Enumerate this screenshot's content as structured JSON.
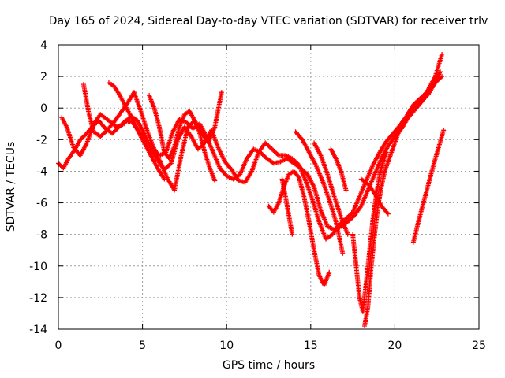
{
  "chart_data": {
    "type": "scatter",
    "title": "Day 165 of 2024, Sidereal Day-to-day VTEC variation (SDTVAR) for receiver trlv",
    "xlabel": "GPS time / hours",
    "ylabel": "SDTVAR / TECUs",
    "xlim": [
      0,
      25
    ],
    "ylim": [
      -14,
      4
    ],
    "xticks": [
      0,
      5,
      10,
      15,
      20,
      25
    ],
    "yticks": [
      -14,
      -12,
      -10,
      -8,
      -6,
      -4,
      -2,
      0,
      2,
      4
    ],
    "grid": true,
    "marker": "+",
    "color": "#ff0000",
    "series": [
      {
        "x": [
          0.0,
          0.3,
          0.6,
          1.0,
          1.3,
          1.6,
          2.0,
          2.4,
          2.8,
          3.2,
          3.6,
          4.0,
          4.4,
          4.8,
          5.2,
          5.6,
          6.0,
          6.4,
          6.8,
          7.2,
          7.6,
          8.0,
          8.4,
          8.8,
          9.2,
          9.6,
          10.0,
          10.4,
          10.8,
          11.2,
          11.6,
          12.0,
          12.4,
          12.8,
          13.2,
          13.6,
          14.0,
          14.4,
          14.8,
          15.2,
          15.6,
          16.0,
          16.4,
          16.8,
          17.2,
          17.6,
          18.0,
          18.4,
          18.8,
          19.2,
          19.6,
          20.0,
          20.4,
          20.8,
          21.2,
          21.6,
          22.0,
          22.4,
          22.8
        ],
        "y": [
          -3.5,
          -3.8,
          -3.2,
          -2.6,
          -2.0,
          -1.7,
          -1.2,
          -0.8,
          -1.3,
          -1.6,
          -1.2,
          -0.8,
          -0.9,
          -1.5,
          -2.0,
          -2.5,
          -3.0,
          -2.8,
          -1.5,
          -0.7,
          -0.9,
          -1.3,
          -1.0,
          -1.8,
          -2.8,
          -3.8,
          -4.3,
          -4.5,
          -4.2,
          -3.2,
          -2.6,
          -2.8,
          -3.2,
          -3.5,
          -3.4,
          -3.2,
          -3.5,
          -3.8,
          -4.2,
          -5.0,
          -6.5,
          -7.5,
          -7.7,
          -7.5,
          -7.2,
          -6.8,
          -6.2,
          -5.2,
          -4.2,
          -3.2,
          -2.4,
          -1.8,
          -1.3,
          -0.6,
          -0.1,
          0.4,
          0.9,
          1.6,
          2.0
        ]
      },
      {
        "x": [
          0.2,
          0.5,
          0.9,
          1.3,
          1.7,
          2.1,
          2.5,
          3.0,
          3.5,
          3.9,
          4.3,
          4.7,
          5.1,
          5.5,
          5.9,
          6.3,
          6.7,
          7.1,
          7.5,
          7.9,
          8.3,
          8.7,
          9.1,
          9.5,
          9.9,
          10.3,
          10.7,
          11.1,
          11.5,
          11.9,
          12.3,
          12.7,
          13.1,
          13.5,
          13.9,
          14.3,
          14.7,
          15.1,
          15.5,
          15.9,
          16.3,
          16.7,
          17.1,
          17.5,
          17.9,
          18.3,
          18.7,
          19.1,
          19.5,
          19.9,
          20.3,
          20.7,
          21.1,
          21.5,
          21.9,
          22.3,
          22.7
        ],
        "y": [
          -0.6,
          -1.2,
          -2.5,
          -3.0,
          -2.2,
          -1.0,
          -0.4,
          -0.8,
          -1.2,
          -1.0,
          -0.5,
          -0.8,
          -1.6,
          -2.6,
          -3.3,
          -3.9,
          -3.5,
          -2.0,
          -1.2,
          -1.8,
          -2.6,
          -2.2,
          -1.4,
          -2.5,
          -3.4,
          -3.9,
          -4.6,
          -4.7,
          -4.0,
          -2.8,
          -2.2,
          -2.6,
          -3.0,
          -3.0,
          -3.2,
          -3.6,
          -4.6,
          -5.8,
          -7.2,
          -8.3,
          -8.0,
          -7.4,
          -7.0,
          -6.6,
          -5.6,
          -4.6,
          -3.6,
          -2.8,
          -2.1,
          -1.6,
          -1.1,
          -0.5,
          0.2,
          0.6,
          1.0,
          1.5,
          2.3
        ]
      },
      {
        "x": [
          1.5,
          1.8,
          2.1,
          2.5,
          2.9,
          3.3,
          3.7,
          4.1,
          4.5,
          4.9,
          5.3,
          5.7,
          6.1,
          6.5,
          6.9,
          7.3,
          7.7,
          8.1,
          8.5,
          8.9,
          9.3,
          9.7
        ],
        "y": [
          1.5,
          -0.3,
          -1.5,
          -1.8,
          -1.4,
          -0.9,
          -0.3,
          0.3,
          1.0,
          -0.2,
          -1.5,
          -2.6,
          -3.5,
          -4.5,
          -5.2,
          -3.0,
          -1.2,
          -0.8,
          -1.5,
          -2.2,
          -1.2,
          1.0
        ]
      },
      {
        "x": [
          3.0,
          3.3,
          3.6,
          3.9,
          4.2,
          4.5,
          4.8,
          5.1,
          5.4,
          5.7,
          6.0,
          6.3
        ],
        "y": [
          1.6,
          1.4,
          0.9,
          0.3,
          -0.3,
          -0.9,
          -1.6,
          -2.2,
          -2.8,
          -3.4,
          -4.0,
          -4.5
        ]
      },
      {
        "x": [
          5.4,
          5.7,
          6.0,
          6.3,
          6.6,
          6.9,
          7.2,
          7.5,
          7.8,
          8.1,
          8.4,
          8.7,
          9.0,
          9.3
        ],
        "y": [
          0.8,
          0.0,
          -1.2,
          -2.8,
          -3.2,
          -2.4,
          -1.2,
          -0.4,
          -0.2,
          -0.8,
          -1.6,
          -2.8,
          -3.8,
          -4.6
        ]
      },
      {
        "x": [
          12.5,
          12.8,
          13.1,
          13.4,
          13.7,
          14.0,
          14.3,
          14.6,
          14.9,
          15.2,
          15.5,
          15.8,
          16.1
        ],
        "y": [
          -6.2,
          -6.6,
          -6.0,
          -5.0,
          -4.2,
          -4.0,
          -4.4,
          -5.6,
          -7.2,
          -9.0,
          -10.6,
          -11.2,
          -10.4
        ]
      },
      {
        "x": [
          13.3,
          13.5,
          13.7,
          13.9
        ],
        "y": [
          -4.5,
          -5.6,
          -6.8,
          -8.0
        ]
      },
      {
        "x": [
          14.1,
          14.5,
          14.9,
          15.3,
          15.7,
          16.1,
          16.5,
          16.9
        ],
        "y": [
          -1.5,
          -2.0,
          -2.8,
          -3.6,
          -4.6,
          -5.8,
          -7.2,
          -9.2
        ]
      },
      {
        "x": [
          15.2,
          15.6,
          16.0,
          16.4,
          16.8,
          17.2
        ],
        "y": [
          -2.2,
          -3.0,
          -4.2,
          -5.6,
          -6.9,
          -8.0
        ]
      },
      {
        "x": [
          16.2,
          16.5,
          16.8,
          17.1
        ],
        "y": [
          -2.6,
          -3.2,
          -4.0,
          -5.2
        ]
      },
      {
        "x": [
          17.5,
          17.7,
          17.9,
          18.1,
          18.3,
          18.5,
          18.7,
          18.9,
          19.1,
          19.3,
          19.5
        ],
        "y": [
          -8.0,
          -10.0,
          -12.0,
          -12.9,
          -11.0,
          -9.0,
          -7.0,
          -5.5,
          -4.2,
          -3.4,
          -2.8
        ]
      },
      {
        "x": [
          18.2,
          18.4,
          18.6,
          18.8,
          19.0,
          19.2,
          19.4,
          19.6,
          19.8,
          20.0,
          20.2,
          20.4
        ],
        "y": [
          -13.8,
          -12.6,
          -10.0,
          -8.0,
          -6.2,
          -5.0,
          -4.0,
          -3.4,
          -2.8,
          -2.2,
          -1.6,
          -1.2
        ]
      },
      {
        "x": [
          18.0,
          18.4,
          18.8,
          19.2,
          19.6
        ],
        "y": [
          -4.5,
          -4.8,
          -5.4,
          -6.2,
          -6.7
        ]
      },
      {
        "x": [
          21.1,
          21.4,
          21.7,
          22.0,
          22.3,
          22.6,
          22.9
        ],
        "y": [
          -8.5,
          -7.2,
          -6.0,
          -4.8,
          -3.6,
          -2.5,
          -1.4
        ]
      },
      {
        "x": [
          20.8,
          21.2,
          21.6,
          22.0,
          22.4,
          22.8
        ],
        "y": [
          -0.3,
          0.0,
          0.5,
          1.2,
          2.0,
          3.4
        ]
      }
    ]
  }
}
